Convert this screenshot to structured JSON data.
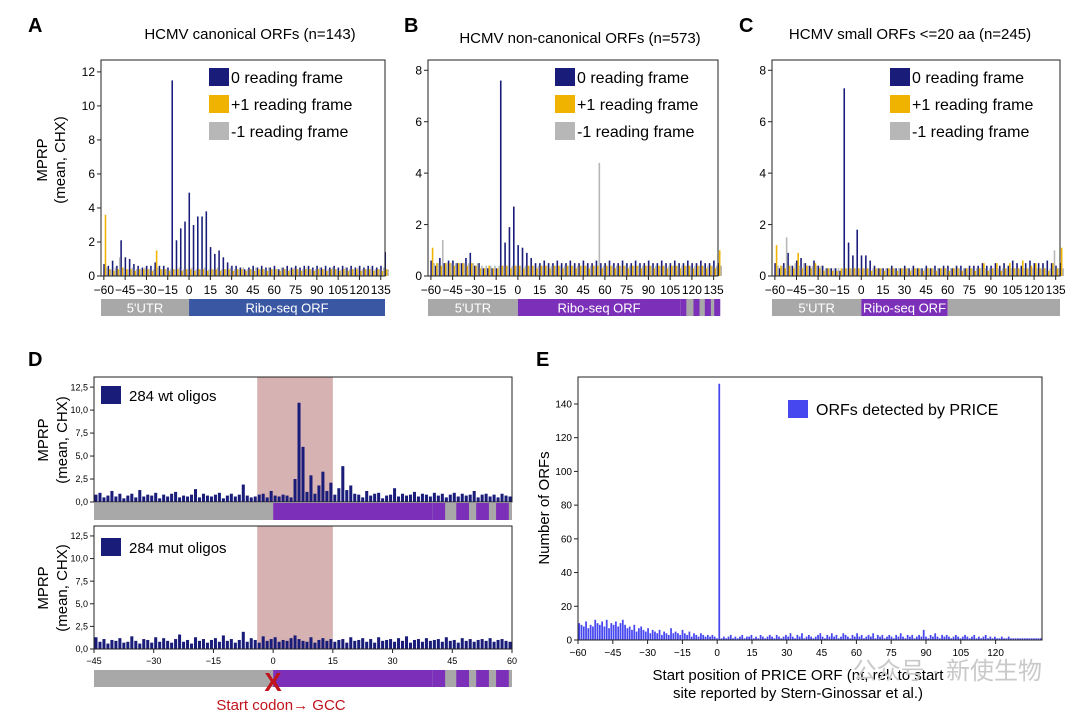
{
  "colors": {
    "frame0": "#1a1c7a",
    "frame1": "#f0b400",
    "frameM1": "#b7b7b7",
    "utr": "#a8a8a8",
    "orf_canonical": "#3a57a3",
    "orf_noncanonical": "#7c2fb8",
    "orf_small": "#7c2fb8",
    "shade": "#c99898",
    "price": "#4747f0",
    "red": "#c0141c"
  },
  "chart_data": [
    {
      "id": "A",
      "panel_letter": "A",
      "type": "bar",
      "title": "HCMV canonical ORFs (n=143)",
      "ylabel_line1": "MPRP",
      "ylabel_line2": "(mean, CHX)",
      "ylim": [
        0,
        12.7
      ],
      "yticks": [
        "0",
        "2",
        "4",
        "6",
        "8",
        "10",
        "12"
      ],
      "xlim": [
        -62,
        138
      ],
      "xticks": [
        "−60",
        "−45",
        "−30",
        "−15",
        "0",
        "15",
        "30",
        "45",
        "60",
        "75",
        "90",
        "105",
        "120",
        "135"
      ],
      "legend": [
        "0 reading frame",
        "+1 reading frame",
        "-1 reading frame"
      ],
      "utr_label": "5'UTR",
      "orf_label": "Ribo-seq ORF",
      "orf_end": 138,
      "frame0": [
        0.7,
        0.6,
        0.9,
        0.6,
        2.1,
        1.1,
        1.0,
        0.7,
        0.6,
        0.5,
        0.6,
        0.6,
        0.8,
        0.6,
        0.6,
        0.5,
        11.5,
        2.1,
        2.8,
        3.2,
        4.9,
        3.0,
        3.5,
        3.5,
        3.8,
        1.7,
        1.3,
        1.5,
        1.1,
        0.8,
        0.6,
        0.6,
        0.5,
        0.4,
        0.5,
        0.6,
        0.5,
        0.6,
        0.5,
        0.5,
        0.6,
        0.4,
        0.5,
        0.6,
        0.5,
        0.6,
        0.5,
        0.6,
        0.6,
        0.5,
        0.6,
        0.5,
        0.6,
        0.5,
        0.6,
        0.5,
        0.6,
        0.5,
        0.6,
        0.5,
        0.6,
        0.5,
        0.6,
        0.6,
        0.5,
        0.6,
        1.4
      ],
      "frame1": [
        3.6,
        0.4,
        0.3,
        0.4,
        0.5,
        0.4,
        0.4,
        0.3,
        0.4,
        0.4,
        0.4,
        0.3,
        1.5,
        0.4,
        0.4,
        0.3,
        0.4,
        0.4,
        0.3,
        0.4,
        0.4,
        0.3,
        0.4,
        0.4,
        0.3,
        0.4,
        0.4,
        0.3,
        0.4,
        0.4,
        0.3,
        0.4,
        0.4,
        0.3,
        0.4,
        0.3,
        0.4,
        0.4,
        0.3,
        0.4,
        0.4,
        0.3,
        0.4,
        0.3,
        0.4,
        0.4,
        0.3,
        0.4,
        0.4,
        0.3,
        0.4,
        0.4,
        0.3,
        0.4,
        0.4,
        0.3,
        0.4,
        0.3,
        0.4,
        0.4,
        0.3,
        0.4,
        0.4,
        0.3,
        0.4,
        0.3,
        0.4
      ],
      "frameM1": [
        0.5,
        0.4,
        0.5,
        1.1,
        0.5,
        0.4,
        0.5,
        0.4,
        0.4,
        0.5,
        0.4,
        0.4,
        0.5,
        0.4,
        0.4,
        0.4,
        0.4,
        0.5,
        0.4,
        0.4,
        0.5,
        0.4,
        0.4,
        0.5,
        0.4,
        0.4,
        0.5,
        0.4,
        0.4,
        0.5,
        0.4,
        0.4,
        0.5,
        0.4,
        0.4,
        0.5,
        0.4,
        0.4,
        0.5,
        0.4,
        0.4,
        0.5,
        0.4,
        0.4,
        0.5,
        0.4,
        0.4,
        0.5,
        0.4,
        0.4,
        0.5,
        0.4,
        0.4,
        0.5,
        0.4,
        0.4,
        0.5,
        0.4,
        0.4,
        0.5,
        0.4,
        0.4,
        0.5,
        0.4,
        0.4,
        0.5,
        0.4
      ]
    },
    {
      "id": "B",
      "panel_letter": "B",
      "type": "bar",
      "title": "HCMV non-canonical ORFs (n=573)",
      "ylabel_line1": "",
      "ylabel_line2": "",
      "ylim": [
        0,
        8.4
      ],
      "yticks": [
        "0",
        "2",
        "4",
        "6",
        "8"
      ],
      "xlim": [
        -62,
        138
      ],
      "xticks": [
        "−60",
        "−45",
        "−30",
        "−15",
        "0",
        "15",
        "30",
        "45",
        "60",
        "75",
        "90",
        "105",
        "120",
        "135"
      ],
      "legend": [
        "0 reading frame",
        "+1 reading frame",
        "-1 reading frame"
      ],
      "utr_label": "5'UTR",
      "orf_label": "Ribo-seq ORF",
      "orf_end": 138,
      "frame0": [
        0.6,
        0.4,
        0.7,
        0.5,
        0.6,
        0.6,
        0.5,
        0.5,
        0.7,
        0.9,
        0.4,
        0.5,
        0.3,
        0.3,
        0.3,
        0.3,
        7.6,
        1.3,
        1.9,
        2.7,
        1.2,
        1.1,
        0.9,
        0.7,
        0.5,
        0.5,
        0.6,
        0.5,
        0.5,
        0.6,
        0.5,
        0.5,
        0.6,
        0.5,
        0.5,
        0.6,
        0.5,
        0.5,
        0.6,
        0.5,
        0.5,
        0.6,
        0.5,
        0.5,
        0.6,
        0.5,
        0.5,
        0.6,
        0.5,
        0.5,
        0.6,
        0.5,
        0.5,
        0.6,
        0.5,
        0.5,
        0.6,
        0.5,
        0.5,
        0.6,
        0.5,
        0.5,
        0.6,
        0.5,
        0.5,
        0.6,
        0.5
      ],
      "frame1": [
        1.1,
        0.5,
        0.4,
        0.5,
        0.5,
        0.4,
        0.5,
        0.5,
        0.4,
        0.5,
        0.4,
        0.3,
        0.3,
        0.4,
        0.3,
        0.3,
        0.4,
        0.4,
        0.3,
        0.4,
        0.4,
        0.3,
        0.4,
        0.4,
        0.3,
        0.4,
        0.4,
        0.3,
        0.4,
        0.4,
        0.3,
        0.4,
        0.4,
        0.3,
        0.4,
        0.4,
        0.3,
        0.4,
        0.4,
        0.3,
        0.4,
        0.4,
        0.3,
        0.4,
        0.4,
        0.3,
        0.4,
        0.4,
        0.3,
        0.4,
        0.4,
        0.3,
        0.4,
        0.4,
        0.3,
        0.4,
        0.4,
        0.3,
        0.4,
        0.4,
        0.3,
        0.4,
        0.4,
        0.3,
        0.4,
        0.3,
        1.0
      ],
      "frameM1": [
        0.5,
        0.5,
        1.4,
        0.5,
        0.5,
        0.5,
        0.5,
        0.5,
        0.5,
        0.5,
        0.5,
        0.4,
        0.4,
        0.4,
        0.4,
        0.4,
        0.4,
        0.4,
        0.4,
        0.4,
        0.4,
        0.4,
        0.4,
        0.4,
        0.4,
        0.4,
        0.4,
        0.4,
        0.4,
        0.4,
        0.4,
        0.4,
        0.4,
        0.4,
        0.4,
        0.4,
        0.4,
        0.4,
        4.4,
        0.4,
        0.4,
        0.4,
        0.4,
        0.4,
        0.4,
        0.4,
        0.4,
        0.4,
        0.4,
        0.4,
        0.4,
        0.4,
        0.4,
        0.4,
        0.4,
        0.4,
        0.4,
        0.4,
        0.4,
        0.4,
        0.4,
        0.4,
        0.4,
        0.4,
        0.4,
        0.4,
        0.4
      ]
    },
    {
      "id": "C",
      "panel_letter": "C",
      "type": "bar",
      "title": "HCMV small ORFs <=20 aa (n=245)",
      "ylabel_line1": "",
      "ylabel_line2": "",
      "ylim": [
        0,
        8.4
      ],
      "yticks": [
        "0",
        "2",
        "4",
        "6",
        "8"
      ],
      "xlim": [
        -62,
        138
      ],
      "xticks": [
        "−60",
        "−45",
        "−30",
        "−15",
        "0",
        "15",
        "30",
        "45",
        "60",
        "75",
        "90",
        "105",
        "120",
        "135"
      ],
      "legend": [
        "0 reading frame",
        "+1 reading frame",
        "-1 reading frame"
      ],
      "utr_label": "5'UTR",
      "orf_label": "Ribo-seq ORF",
      "orf_end": 60,
      "frame0": [
        0.5,
        0.3,
        0.5,
        0.9,
        0.4,
        0.6,
        0.7,
        0.5,
        0.4,
        0.6,
        0.4,
        0.4,
        0.3,
        0.3,
        0.3,
        0.2,
        7.3,
        1.3,
        0.8,
        1.8,
        0.8,
        0.8,
        0.6,
        0.4,
        0.3,
        0.3,
        0.3,
        0.4,
        0.3,
        0.3,
        0.4,
        0.3,
        0.4,
        0.3,
        0.3,
        0.4,
        0.3,
        0.4,
        0.3,
        0.4,
        0.4,
        0.3,
        0.4,
        0.4,
        0.3,
        0.4,
        0.4,
        0.4,
        0.5,
        0.4,
        0.4,
        0.5,
        0.4,
        0.5,
        0.4,
        0.6,
        0.5,
        0.4,
        0.5,
        0.6,
        0.5,
        0.5,
        0.5,
        0.6,
        0.5,
        0.4,
        0.5
      ],
      "frame1": [
        1.2,
        0.4,
        0.3,
        0.4,
        0.3,
        0.9,
        0.3,
        0.4,
        0.3,
        0.5,
        0.3,
        0.2,
        0.3,
        0.2,
        0.2,
        0.3,
        0.3,
        0.3,
        0.3,
        0.3,
        0.3,
        0.3,
        0.2,
        0.3,
        0.3,
        0.2,
        0.3,
        0.3,
        0.2,
        0.3,
        0.3,
        0.2,
        0.3,
        0.3,
        0.2,
        0.3,
        0.3,
        0.2,
        0.3,
        0.3,
        0.2,
        0.3,
        0.3,
        0.2,
        0.3,
        0.3,
        0.2,
        0.3,
        0.5,
        0.2,
        0.3,
        0.5,
        0.2,
        0.3,
        0.5,
        0.3,
        0.3,
        0.6,
        0.3,
        0.4,
        0.5,
        0.3,
        0.3,
        0.2,
        0.5,
        0.3,
        1.1
      ],
      "frameM1": [
        0.4,
        0.4,
        1.5,
        0.4,
        0.5,
        0.4,
        0.5,
        0.4,
        0.4,
        0.4,
        0.4,
        0.3,
        0.3,
        0.3,
        0.3,
        0.3,
        0.3,
        0.3,
        0.3,
        0.3,
        0.3,
        0.3,
        0.3,
        0.3,
        0.3,
        0.3,
        0.3,
        0.3,
        0.3,
        0.3,
        0.3,
        0.3,
        0.3,
        0.3,
        0.3,
        0.3,
        0.3,
        0.3,
        0.3,
        0.3,
        0.3,
        0.3,
        0.3,
        0.3,
        0.3,
        0.3,
        0.3,
        0.3,
        0.3,
        0.3,
        0.3,
        0.3,
        0.3,
        0.3,
        0.3,
        0.3,
        0.3,
        0.3,
        0.3,
        0.3,
        0.3,
        0.3,
        0.3,
        0.3,
        1.0,
        0.3,
        0.3
      ]
    },
    {
      "id": "D1",
      "panel_letter": "D",
      "type": "bar",
      "title": "",
      "ylabel_line1": "MPRP",
      "ylabel_line2": "(mean, CHX)",
      "ylim": [
        0,
        13.6
      ],
      "yticks": [
        "0,0",
        "2,5",
        "5,0",
        "7,5",
        "10,0",
        "12,5"
      ],
      "xlim": [
        -45,
        60
      ],
      "xticks": [],
      "legend": [
        "284 wt oligos"
      ],
      "shade_range": [
        -4,
        15
      ],
      "values": [
        0.8,
        1.0,
        0.5,
        0.7,
        1.2,
        0.6,
        0.9,
        0.4,
        0.7,
        0.9,
        0.5,
        1.3,
        0.6,
        0.8,
        0.7,
        1.0,
        0.4,
        0.8,
        0.6,
        0.9,
        1.1,
        0.5,
        0.7,
        0.6,
        0.8,
        1.4,
        0.5,
        0.9,
        0.7,
        0.6,
        0.8,
        1.0,
        0.4,
        0.7,
        0.9,
        0.6,
        0.8,
        1.9,
        0.7,
        0.5,
        0.6,
        0.8,
        0.9,
        0.5,
        1.2,
        0.7,
        0.6,
        0.8,
        0.7,
        0.5,
        2.5,
        10.8,
        6.0,
        1.1,
        2.9,
        0.9,
        1.8,
        3.3,
        1.2,
        2.1,
        0.8,
        1.5,
        3.9,
        1.3,
        1.8,
        0.9,
        0.8,
        0.5,
        1.2,
        0.7,
        0.9,
        1.0,
        0.4,
        0.7,
        0.8,
        1.5,
        0.6,
        0.9,
        0.7,
        0.8,
        1.1,
        0.6,
        0.9,
        0.8,
        0.6,
        1.0,
        0.7,
        0.9,
        0.5,
        0.8,
        1.0,
        0.6,
        0.9,
        0.7,
        0.8,
        1.2,
        0.5,
        0.8,
        0.9,
        0.6,
        0.8,
        0.5,
        0.9,
        0.7,
        0.6
      ]
    },
    {
      "id": "D2",
      "panel_letter": "",
      "type": "bar",
      "title": "",
      "ylabel_line1": "MPRP",
      "ylabel_line2": "(mean, CHX)",
      "ylim": [
        0,
        13.6
      ],
      "yticks": [
        "0,0",
        "2,5",
        "5,0",
        "7,5",
        "10,0",
        "12,5"
      ],
      "xlim": [
        -45,
        60
      ],
      "xticks": [
        "−45",
        "−30",
        "−15",
        "0",
        "15",
        "30",
        "45",
        "60"
      ],
      "legend": [
        "284 mut oligos"
      ],
      "shade_range": [
        -4,
        15
      ],
      "values": [
        1.3,
        0.8,
        1.1,
        0.6,
        1.0,
        0.9,
        1.2,
        0.7,
        0.8,
        1.4,
        0.9,
        0.6,
        1.1,
        1.0,
        0.7,
        1.3,
        0.8,
        1.2,
        0.9,
        0.7,
        1.1,
        1.6,
        0.8,
        1.0,
        0.6,
        1.3,
        0.9,
        1.1,
        0.7,
        1.0,
        1.2,
        0.8,
        1.5,
        0.9,
        1.1,
        0.7,
        1.0,
        1.9,
        0.8,
        1.2,
        1.0,
        0.7,
        1.4,
        0.9,
        1.1,
        1.3,
        0.8,
        1.0,
        0.9,
        1.2,
        1.5,
        1.1,
        0.9,
        0.8,
        1.3,
        0.7,
        1.0,
        1.2,
        0.9,
        1.1,
        0.8,
        1.0,
        1.1,
        0.7,
        1.3,
        0.9,
        1.0,
        1.2,
        0.8,
        1.1,
        0.7,
        1.3,
        0.9,
        1.0,
        1.1,
        0.8,
        1.2,
        0.9,
        1.4,
        0.7,
        1.0,
        1.1,
        0.8,
        1.2,
        0.9,
        1.0,
        1.1,
        0.8,
        1.3,
        0.9,
        1.0,
        0.7,
        1.2,
        0.9,
        1.1,
        0.8,
        1.0,
        1.1,
        0.9,
        1.2,
        0.8,
        1.0,
        1.1,
        0.9,
        0.8
      ]
    },
    {
      "id": "E",
      "panel_letter": "E",
      "type": "bar",
      "title": "",
      "ylabel_line1": "Number of ORFs",
      "ylabel_line2": "",
      "ylim": [
        0,
        156
      ],
      "yticks": [
        "0",
        "20",
        "40",
        "60",
        "80",
        "100",
        "120",
        "140"
      ],
      "xlim": [
        -60,
        140
      ],
      "xticks": [
        "−60",
        "−45",
        "−30",
        "−15",
        "0",
        "15",
        "30",
        "45",
        "60",
        "75",
        "90",
        "105",
        "120"
      ],
      "legend": [
        "ORFs detected by PRICE"
      ],
      "xlabel_line1": "Start position of PRICE ORF (nt, rel. to start",
      "xlabel_line2": "site reported by Stern-Ginossar et al.)",
      "values": [
        10,
        9,
        8,
        11,
        7,
        9,
        8,
        12,
        10,
        9,
        11,
        8,
        12,
        7,
        10,
        9,
        11,
        8,
        10,
        12,
        9,
        7,
        8,
        6,
        9,
        5,
        7,
        8,
        6,
        5,
        7,
        4,
        6,
        5,
        4,
        6,
        3,
        5,
        4,
        3,
        7,
        4,
        5,
        4,
        3,
        6,
        4,
        3,
        5,
        2,
        4,
        3,
        2,
        4,
        3,
        2,
        3,
        2,
        3,
        2,
        1,
        152,
        1,
        2,
        1,
        2,
        3,
        1,
        2,
        1,
        2,
        3,
        1,
        2,
        2,
        3,
        1,
        2,
        1,
        3,
        2,
        1,
        2,
        3,
        2,
        1,
        3,
        2,
        1,
        2,
        3,
        2,
        4,
        2,
        1,
        3,
        2,
        4,
        1,
        2,
        3,
        2,
        1,
        2,
        3,
        4,
        2,
        1,
        3,
        2,
        4,
        2,
        3,
        1,
        2,
        4,
        3,
        2,
        1,
        3,
        2,
        4,
        2,
        3,
        1,
        2,
        3,
        2,
        4,
        1,
        3,
        2,
        3,
        1,
        2,
        3,
        2,
        1,
        3,
        2,
        4,
        2,
        1,
        3,
        2,
        3,
        1,
        2,
        3,
        2,
        6,
        2,
        1,
        3,
        2,
        4,
        2,
        1,
        3,
        2,
        3,
        2,
        1,
        2,
        3,
        2,
        1,
        2,
        3,
        2,
        1,
        2,
        3,
        1,
        2,
        1,
        2,
        3,
        1,
        2,
        1,
        2,
        1,
        1,
        2,
        1,
        1,
        2,
        1,
        1,
        1,
        1,
        1,
        1,
        1,
        1,
        1,
        1,
        1,
        1,
        1,
        1
      ]
    }
  ],
  "annotations": {
    "start_codon_text": "Start codon→ GCC",
    "cross_glyph": "X",
    "watermark": "公众号 · 新使生物"
  }
}
